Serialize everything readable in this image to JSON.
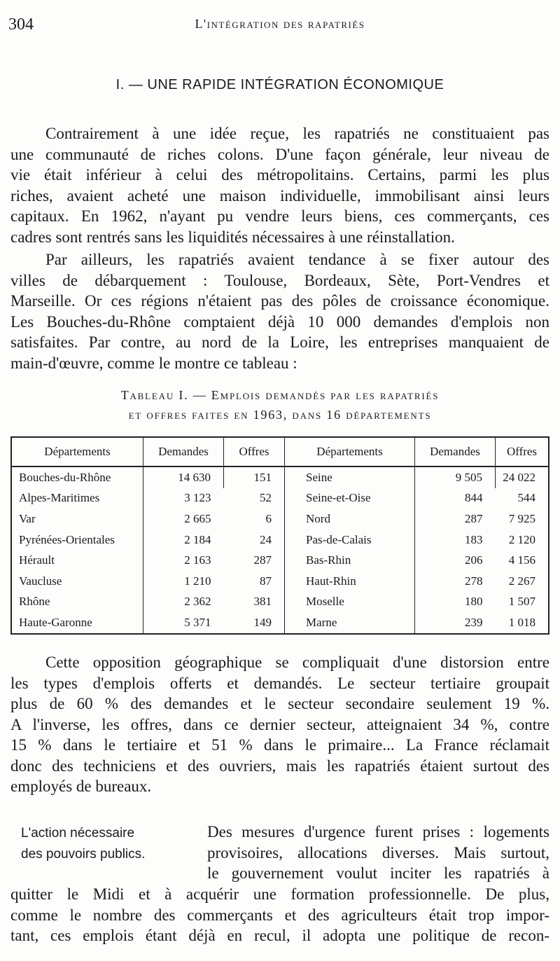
{
  "header": {
    "page_number": "304",
    "running_title": "L'intégration des rapatriés"
  },
  "section_heading": "I. — UNE RAPIDE INTÉGRATION ÉCONOMIQUE",
  "paragraphs": {
    "p1": [
      "Contrairement à une idée reçue, les rapatriés ne constituaient pas",
      "une communauté de riches colons. D'une façon générale, leur niveau de",
      "vie était inférieur à celui des métropolitains. Certains, parmi les plus",
      "riches, avaient acheté une maison individuelle, immobilisant ainsi leurs",
      "capitaux. En 1962, n'ayant pu vendre leurs biens, ces commerçants, ces",
      "cadres sont rentrés sans les liquidités nécessaires à une réinstallation."
    ],
    "p2": [
      "Par ailleurs, les rapatriés avaient tendance à se fixer autour des",
      "villes de débarquement : Toulouse, Bordeaux, Sète, Port-Vendres et",
      "Marseille. Or ces régions n'étaient pas des pôles de croissance économique.",
      "Les Bouches-du-Rhône comptaient déjà 10 000 demandes d'emplois non",
      "satisfaites. Par contre, au nord de la Loire, les entreprises manquaient de",
      "main-d'œuvre, comme le montre ce tableau :"
    ],
    "p3": [
      "Cette opposition géographique se compliquait d'une distorsion entre",
      "les types d'emplois offerts et demandés. Le secteur tertiaire groupait",
      "plus de 60 % des demandes et le secteur secondaire seulement 19 %.",
      "A l'inverse, les offres, dans ce dernier secteur, atteignaient 34 %, contre",
      "15 % dans le tertiaire et 51 % dans le primaire... La France réclamait",
      "donc des techniciens et des ouvriers, mais les rapatriés étaient surtout des",
      "employés de bureaux."
    ],
    "p4_side": [
      "Des mesures d'urgence furent prises : logements",
      "provisoires, allocations diverses. Mais surtout,",
      "le gouvernement voulut inciter les rapatriés à"
    ],
    "p4_full": [
      "quitter le Midi et à acquérir une formation professionnelle. De plus,",
      "comme le nombre des commerçants et des agriculteurs était trop impor-",
      "tant, ces emplois étant déjà en recul, il adopta une politique de recon-"
    ]
  },
  "sidenote": [
    "L'action nécessaire",
    "des pouvoirs publics."
  ],
  "table": {
    "caption": [
      "Tableau I. — Emplois demandés par les rapatriés",
      "et offres faites en 1963, dans 16 départements"
    ],
    "headers": [
      "Départements",
      "Demandes",
      "Offres",
      "Départements",
      "Demandes",
      "Offres"
    ],
    "rows": [
      [
        "Bouches-du-Rhône",
        "14 630",
        "151",
        "Seine",
        "9 505",
        "24 022"
      ],
      [
        "Alpes-Maritimes",
        "3 123",
        "52",
        "Seine-et-Oise",
        "844",
        "544"
      ],
      [
        "Var",
        "2 665",
        "6",
        "Nord",
        "287",
        "7 925"
      ],
      [
        "Pyrénées-Orientales",
        "2 184",
        "24",
        "Pas-de-Calais",
        "183",
        "2 120"
      ],
      [
        "Hérault",
        "2 163",
        "287",
        "Bas-Rhin",
        "206",
        "4 156"
      ],
      [
        "Vaucluse",
        "1 210",
        "87",
        "Haut-Rhin",
        "278",
        "2 267"
      ],
      [
        "Rhône",
        "2 362",
        "381",
        "Moselle",
        "180",
        "1 507"
      ],
      [
        "Haute-Garonne",
        "5 371",
        "149",
        "Marne",
        "239",
        "1 018"
      ]
    ]
  }
}
